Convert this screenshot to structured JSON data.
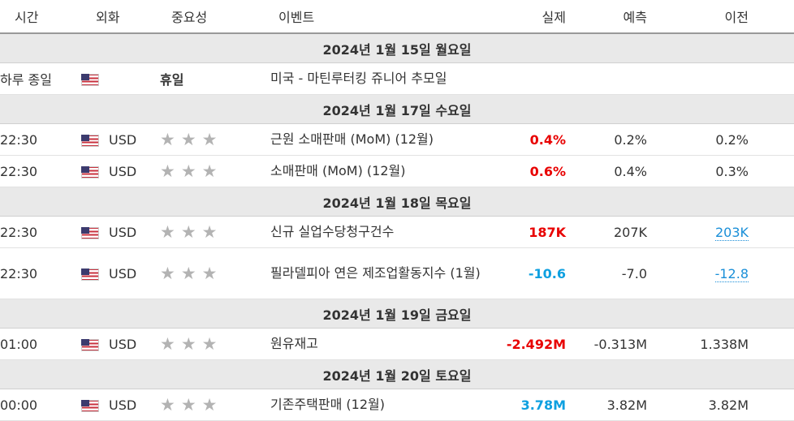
{
  "header": {
    "time": "시간",
    "currency": "외화",
    "importance": "중요성",
    "event": "이벤트",
    "actual": "실제",
    "forecast": "예측",
    "previous": "이전"
  },
  "days": [
    {
      "label": "2024년 1월 15일 월요일"
    },
    {
      "label": "2024년 1월 17일 수요일"
    },
    {
      "label": "2024년 1월 18일 목요일"
    },
    {
      "label": "2024년 1월 19일 금요일"
    },
    {
      "label": "2024년 1월 20일 토요일"
    }
  ],
  "holiday": {
    "time": "하루 종일",
    "flag": "us-flag-icon",
    "label": "휴일",
    "event": "미국 - 마틴루터킹 쥬니어 추모일"
  },
  "events": [
    {
      "time": "22:30",
      "currency": "USD",
      "stars": 3,
      "event": "근원 소매판매 (MoM) (12월)",
      "actual": "0.4%",
      "actual_color": "#e80000",
      "forecast": "0.2%",
      "previous": "0.2%"
    },
    {
      "time": "22:30",
      "currency": "USD",
      "stars": 3,
      "event": "소매판매 (MoM) (12월)",
      "actual": "0.6%",
      "actual_color": "#e80000",
      "forecast": "0.4%",
      "previous": "0.3%"
    },
    {
      "time": "22:30",
      "currency": "USD",
      "stars": 3,
      "event": "신규 실업수당청구건수",
      "actual": "187K",
      "actual_color": "#e80000",
      "forecast": "207K",
      "previous": "203K",
      "previous_link": true
    },
    {
      "time": "22:30",
      "currency": "USD",
      "stars": 3,
      "event": "필라델피아 연은 제조업활동지수 (1월)",
      "actual": "-10.6",
      "actual_color": "#0ea0e0",
      "forecast": "-7.0",
      "previous": "-12.8",
      "previous_link": true
    },
    {
      "time": "01:00",
      "currency": "USD",
      "stars": 3,
      "event": "원유재고",
      "actual": "-2.492M",
      "actual_color": "#e80000",
      "forecast": "-0.313M",
      "previous": "1.338M"
    },
    {
      "time": "00:00",
      "currency": "USD",
      "stars": 3,
      "event": "기존주택판매 (12월)",
      "actual": "3.78M",
      "actual_color": "#0ea0e0",
      "forecast": "3.82M",
      "previous": "3.82M"
    }
  ]
}
